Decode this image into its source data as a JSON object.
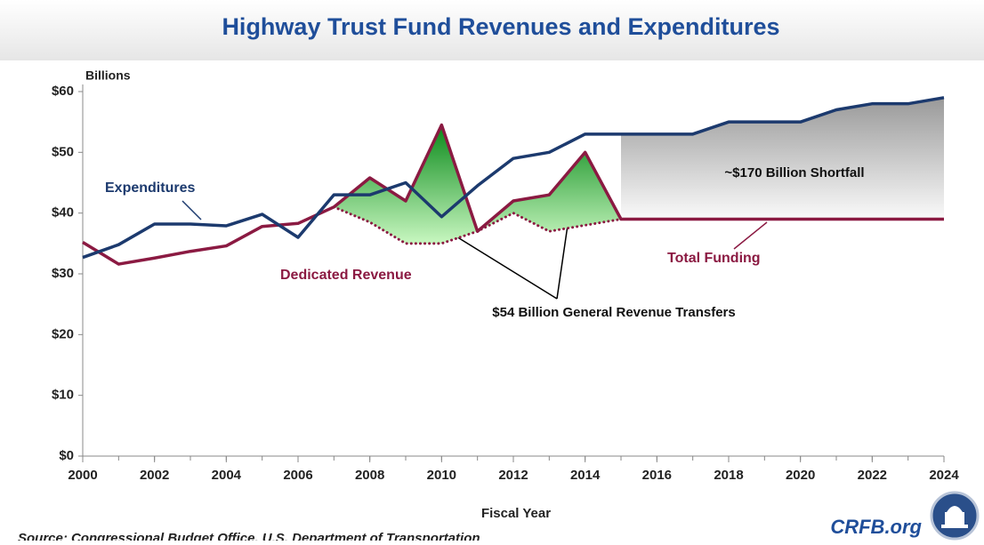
{
  "chart_data": {
    "type": "line",
    "title": "Highway Trust Fund Revenues and Expenditures",
    "y_axis_label": "Billions",
    "x_axis_label": "Fiscal Year",
    "source": "Source: Congressional Budget Office, U.S. Department of Transportation",
    "branding": "CRFB.org",
    "annotations": [
      "~$170 Billion Shortfall",
      "$54 Billion General Revenue Transfers"
    ],
    "x": [
      2000,
      2001,
      2002,
      2003,
      2004,
      2005,
      2006,
      2007,
      2008,
      2009,
      2010,
      2011,
      2012,
      2013,
      2014,
      2015,
      2016,
      2017,
      2018,
      2019,
      2020,
      2021,
      2022,
      2023,
      2024
    ],
    "series": [
      {
        "name": "Expenditures",
        "color": "#1c3a6e",
        "style": "solid",
        "values": [
          32.7,
          34.8,
          38.2,
          38.2,
          37.9,
          39.8,
          36.0,
          43,
          43,
          45,
          39.4,
          44.5,
          49,
          50,
          53,
          53,
          53,
          53,
          55,
          55,
          55,
          57,
          58,
          58,
          59
        ]
      },
      {
        "name": "Total Funding",
        "color": "#8b1a42",
        "style": "solid",
        "values": [
          35.2,
          31.6,
          32.6,
          33.7,
          34.6,
          37.8,
          38.3,
          41,
          45.8,
          42,
          54.5,
          37,
          42,
          43,
          50,
          39,
          39,
          39,
          39,
          39,
          39,
          39,
          39,
          39,
          39
        ]
      },
      {
        "name": "Dedicated Revenue",
        "color": "#8b1a42",
        "style": "dotted",
        "values": [
          null,
          null,
          null,
          null,
          null,
          null,
          null,
          41,
          38.5,
          35,
          35,
          37,
          40,
          37,
          38,
          39,
          null,
          null,
          null,
          null,
          null,
          null,
          null,
          null,
          null
        ]
      }
    ],
    "xlim": [
      2000,
      2024
    ],
    "xticks": [
      2000,
      2002,
      2004,
      2006,
      2008,
      2010,
      2012,
      2014,
      2016,
      2018,
      2020,
      2022,
      2024
    ],
    "ylim": [
      0,
      60
    ],
    "yticks": [
      {
        "value": 0,
        "label": "$0"
      },
      {
        "value": 10,
        "label": "$10"
      },
      {
        "value": 20,
        "label": "$20"
      },
      {
        "value": 30,
        "label": "$30"
      },
      {
        "value": 40,
        "label": "$40"
      },
      {
        "value": 50,
        "label": "$50"
      },
      {
        "value": 60,
        "label": "$60"
      }
    ],
    "grid": false
  }
}
